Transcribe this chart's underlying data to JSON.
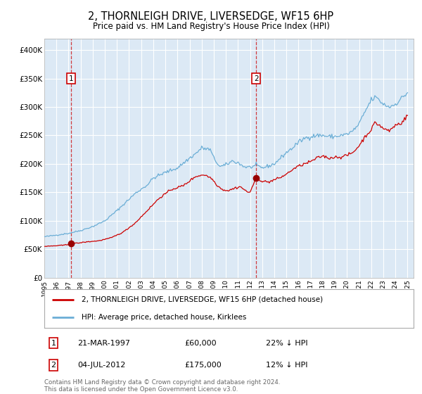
{
  "title": "2, THORNLEIGH DRIVE, LIVERSEDGE, WF15 6HP",
  "subtitle": "Price paid vs. HM Land Registry's House Price Index (HPI)",
  "title_fontsize": 10.5,
  "subtitle_fontsize": 9,
  "background_color": "#ffffff",
  "plot_bg_color": "#dce9f5",
  "grid_color": "#ffffff",
  "hpi_color": "#6baed6",
  "price_color": "#cc0000",
  "marker_color": "#990000",
  "ylim": [
    0,
    420000
  ],
  "yticks": [
    0,
    50000,
    100000,
    150000,
    200000,
    250000,
    300000,
    350000,
    400000
  ],
  "ytick_labels": [
    "£0",
    "£50K",
    "£100K",
    "£150K",
    "£200K",
    "£250K",
    "£300K",
    "£350K",
    "£400K"
  ],
  "transaction1_date": "21-MAR-1997",
  "transaction1_price": 60000,
  "transaction1_pct": "22% ↓ HPI",
  "transaction1_year": 1997.22,
  "transaction2_date": "04-JUL-2012",
  "transaction2_price": 175000,
  "transaction2_pct": "12% ↓ HPI",
  "transaction2_year": 2012.5,
  "legend_label1": "2, THORNLEIGH DRIVE, LIVERSEDGE, WF15 6HP (detached house)",
  "legend_label2": "HPI: Average price, detached house, Kirklees",
  "footer1": "Contains HM Land Registry data © Crown copyright and database right 2024.",
  "footer2": "This data is licensed under the Open Government Licence v3.0.",
  "xmin": 1995.0,
  "xmax": 2025.5
}
